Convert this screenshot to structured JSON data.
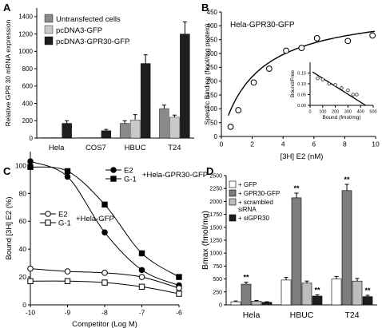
{
  "colors": {
    "untransfected": "#8a8a8a",
    "gfp": "#c8c8c8",
    "gpr30": "#1e1e1e",
    "white": "#ffffff",
    "gray_bar": "#bdbdbd",
    "dark_gray_bar": "#7d7d7d",
    "axis": "#000000"
  },
  "chart_data": [
    {
      "panel": "A",
      "type": "bar",
      "title": "",
      "ylabel": "Relative GPR 30 mRNA expression",
      "xlabel": "",
      "ylim": [
        0,
        1500
      ],
      "yticks": [
        0,
        200,
        400,
        600,
        800,
        1000,
        1200,
        1400
      ],
      "categories": [
        "Hela",
        "COS7",
        "HBUC",
        "T24"
      ],
      "legend_position": "top-left",
      "series": [
        {
          "name": "Untransfected cells",
          "values": [
            4,
            4,
            170,
            340
          ],
          "errors": [
            2,
            2,
            30,
            40
          ]
        },
        {
          "name": "pcDNA3-GFP",
          "values": [
            5,
            5,
            210,
            240
          ],
          "errors": [
            2,
            2,
            60,
            25
          ]
        },
        {
          "name": "pcDNA3-GPR30-GFP",
          "values": [
            170,
            85,
            860,
            1200
          ],
          "errors": [
            30,
            15,
            100,
            140
          ]
        }
      ]
    },
    {
      "panel": "B",
      "type": "scatter",
      "title": "Hela-GPR30-GFP",
      "ylabel": "Specific Binding (fmol/mg protein)",
      "xlabel": "[3H] E2  (nM)",
      "xlim": [
        0,
        10
      ],
      "ylim": [
        0,
        450
      ],
      "xticks": [
        0,
        2,
        4,
        6,
        8,
        10
      ],
      "yticks": [
        0,
        50,
        100,
        150,
        200,
        250,
        300,
        350,
        400,
        450
      ],
      "points": {
        "x": [
          0.6,
          1.1,
          2.1,
          3.1,
          4.2,
          5.2,
          6.2,
          8.2,
          9.8
        ],
        "y": [
          35,
          95,
          195,
          245,
          310,
          320,
          355,
          345,
          365
        ]
      },
      "fit": {
        "bmax": 470,
        "kd": 2.35
      },
      "inset": {
        "type": "scatter",
        "xlabel": "Bound (fmol/mg)",
        "ylabel": "Bound/Free",
        "xlim": [
          0,
          500
        ],
        "ylim": [
          0,
          0.2
        ],
        "xticks": [
          0,
          100,
          200,
          300,
          400,
          500
        ],
        "yticks": [
          0,
          0.05,
          0.1,
          0.15
        ],
        "points": {
          "x": [
            60,
            100,
            150,
            200,
            250,
            300,
            340,
            370
          ],
          "y": [
            0.125,
            0.12,
            0.1,
            0.095,
            0.08,
            0.07,
            0.05,
            0.05
          ]
        },
        "fit_line": {
          "x": [
            20,
            440
          ],
          "y": [
            0.155,
            0.0
          ]
        }
      }
    },
    {
      "panel": "C",
      "type": "line",
      "title": "",
      "ylabel": "Bound [3H] E2 (%)",
      "xlabel": "Competitor (Log M)",
      "xlim": [
        -10,
        -6
      ],
      "ylim": [
        0,
        110
      ],
      "xticks": [
        -10,
        -9,
        -8,
        -7,
        -6
      ],
      "yticks": [
        0,
        20,
        40,
        60,
        80,
        100
      ],
      "group_labels": [
        "+Hela-GPR30-GFP",
        "+Hela-GFP"
      ],
      "x": [
        -10,
        -9,
        -8,
        -7,
        -6
      ],
      "series": [
        {
          "name": "E2",
          "marker": "filled-circle",
          "values": [
            103,
            92,
            52,
            25,
            14
          ]
        },
        {
          "name": "G-1",
          "marker": "filled-square",
          "values": [
            99,
            96,
            72,
            37,
            20
          ]
        },
        {
          "name": "E2",
          "marker": "open-circle",
          "values": [
            26,
            24,
            23,
            20,
            12
          ]
        },
        {
          "name": "G-1",
          "marker": "open-square",
          "values": [
            17,
            17,
            16,
            13,
            8
          ]
        }
      ]
    },
    {
      "panel": "D",
      "type": "bar",
      "title": "",
      "ylabel": "Bmax (fmol/mg)",
      "xlabel": "",
      "ylim": [
        0,
        2500
      ],
      "yticks": [
        0,
        250,
        500,
        750,
        1000,
        1250,
        1500,
        1750,
        2000,
        2250,
        2500
      ],
      "categories": [
        "Hela",
        "HBUC",
        "T24"
      ],
      "legend_position": "top-left",
      "series": [
        {
          "name": "+ GFP",
          "values": [
            60,
            480,
            500
          ],
          "errors": [
            15,
            50,
            50
          ]
        },
        {
          "name": "+ GPR30-GFP",
          "values": [
            400,
            2070,
            2210
          ],
          "errors": [
            40,
            90,
            120
          ]
        },
        {
          "name": "+ scrambled siRNA",
          "legend_lines": [
            "+ scrambled",
            "siRNA"
          ],
          "values": [
            70,
            420,
            460
          ],
          "errors": [
            15,
            40,
            50
          ]
        },
        {
          "name": "+ siGPR30",
          "values": [
            50,
            170,
            160
          ],
          "errors": [
            10,
            25,
            25
          ]
        }
      ],
      "significance": [
        {
          "category": 0,
          "series": 1,
          "label": "**"
        },
        {
          "category": 1,
          "series": 1,
          "label": "**"
        },
        {
          "category": 1,
          "series": 3,
          "label": "**"
        },
        {
          "category": 2,
          "series": 1,
          "label": "**"
        },
        {
          "category": 2,
          "series": 3,
          "label": "**"
        }
      ]
    }
  ],
  "panel_labels": [
    "A",
    "B",
    "C",
    "D"
  ]
}
